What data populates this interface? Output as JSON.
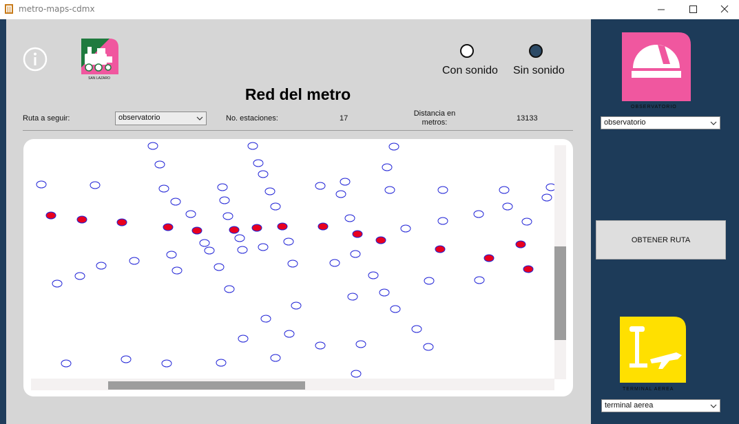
{
  "window": {
    "title": "metro-maps-cdmx",
    "app_icon": "metro-logo-icon",
    "controls": [
      "minimize-icon",
      "maximize-icon",
      "close-icon"
    ]
  },
  "header": {
    "info_icon": "info-icon",
    "logo_caption": "SAN LAZARO",
    "title": "Red del metro"
  },
  "sound": {
    "options": [
      {
        "label": "Con sonido",
        "selected": false
      },
      {
        "label": "Sin sonido",
        "selected": true
      }
    ]
  },
  "route_bar": {
    "ruta_label": "Ruta a seguir:",
    "ruta_value": "observatorio",
    "stations_label": "No. estaciones:",
    "stations_value": "17",
    "distance_label": "Distancia en metros:",
    "distance_value": "13133"
  },
  "map": {
    "route_color": "#e8001f",
    "station_outline_color": "#1f22d6",
    "route_stations": 17
  },
  "side": {
    "origin_caption": "OBSERVATORIO",
    "origin_select": "observatorio",
    "action_button": "OBTENER RUTA",
    "destination_caption": "TERMINAL AEREA",
    "destination_select": "terminal aerea",
    "origin_color": "#f0579f",
    "destination_color": "#ffe000"
  }
}
